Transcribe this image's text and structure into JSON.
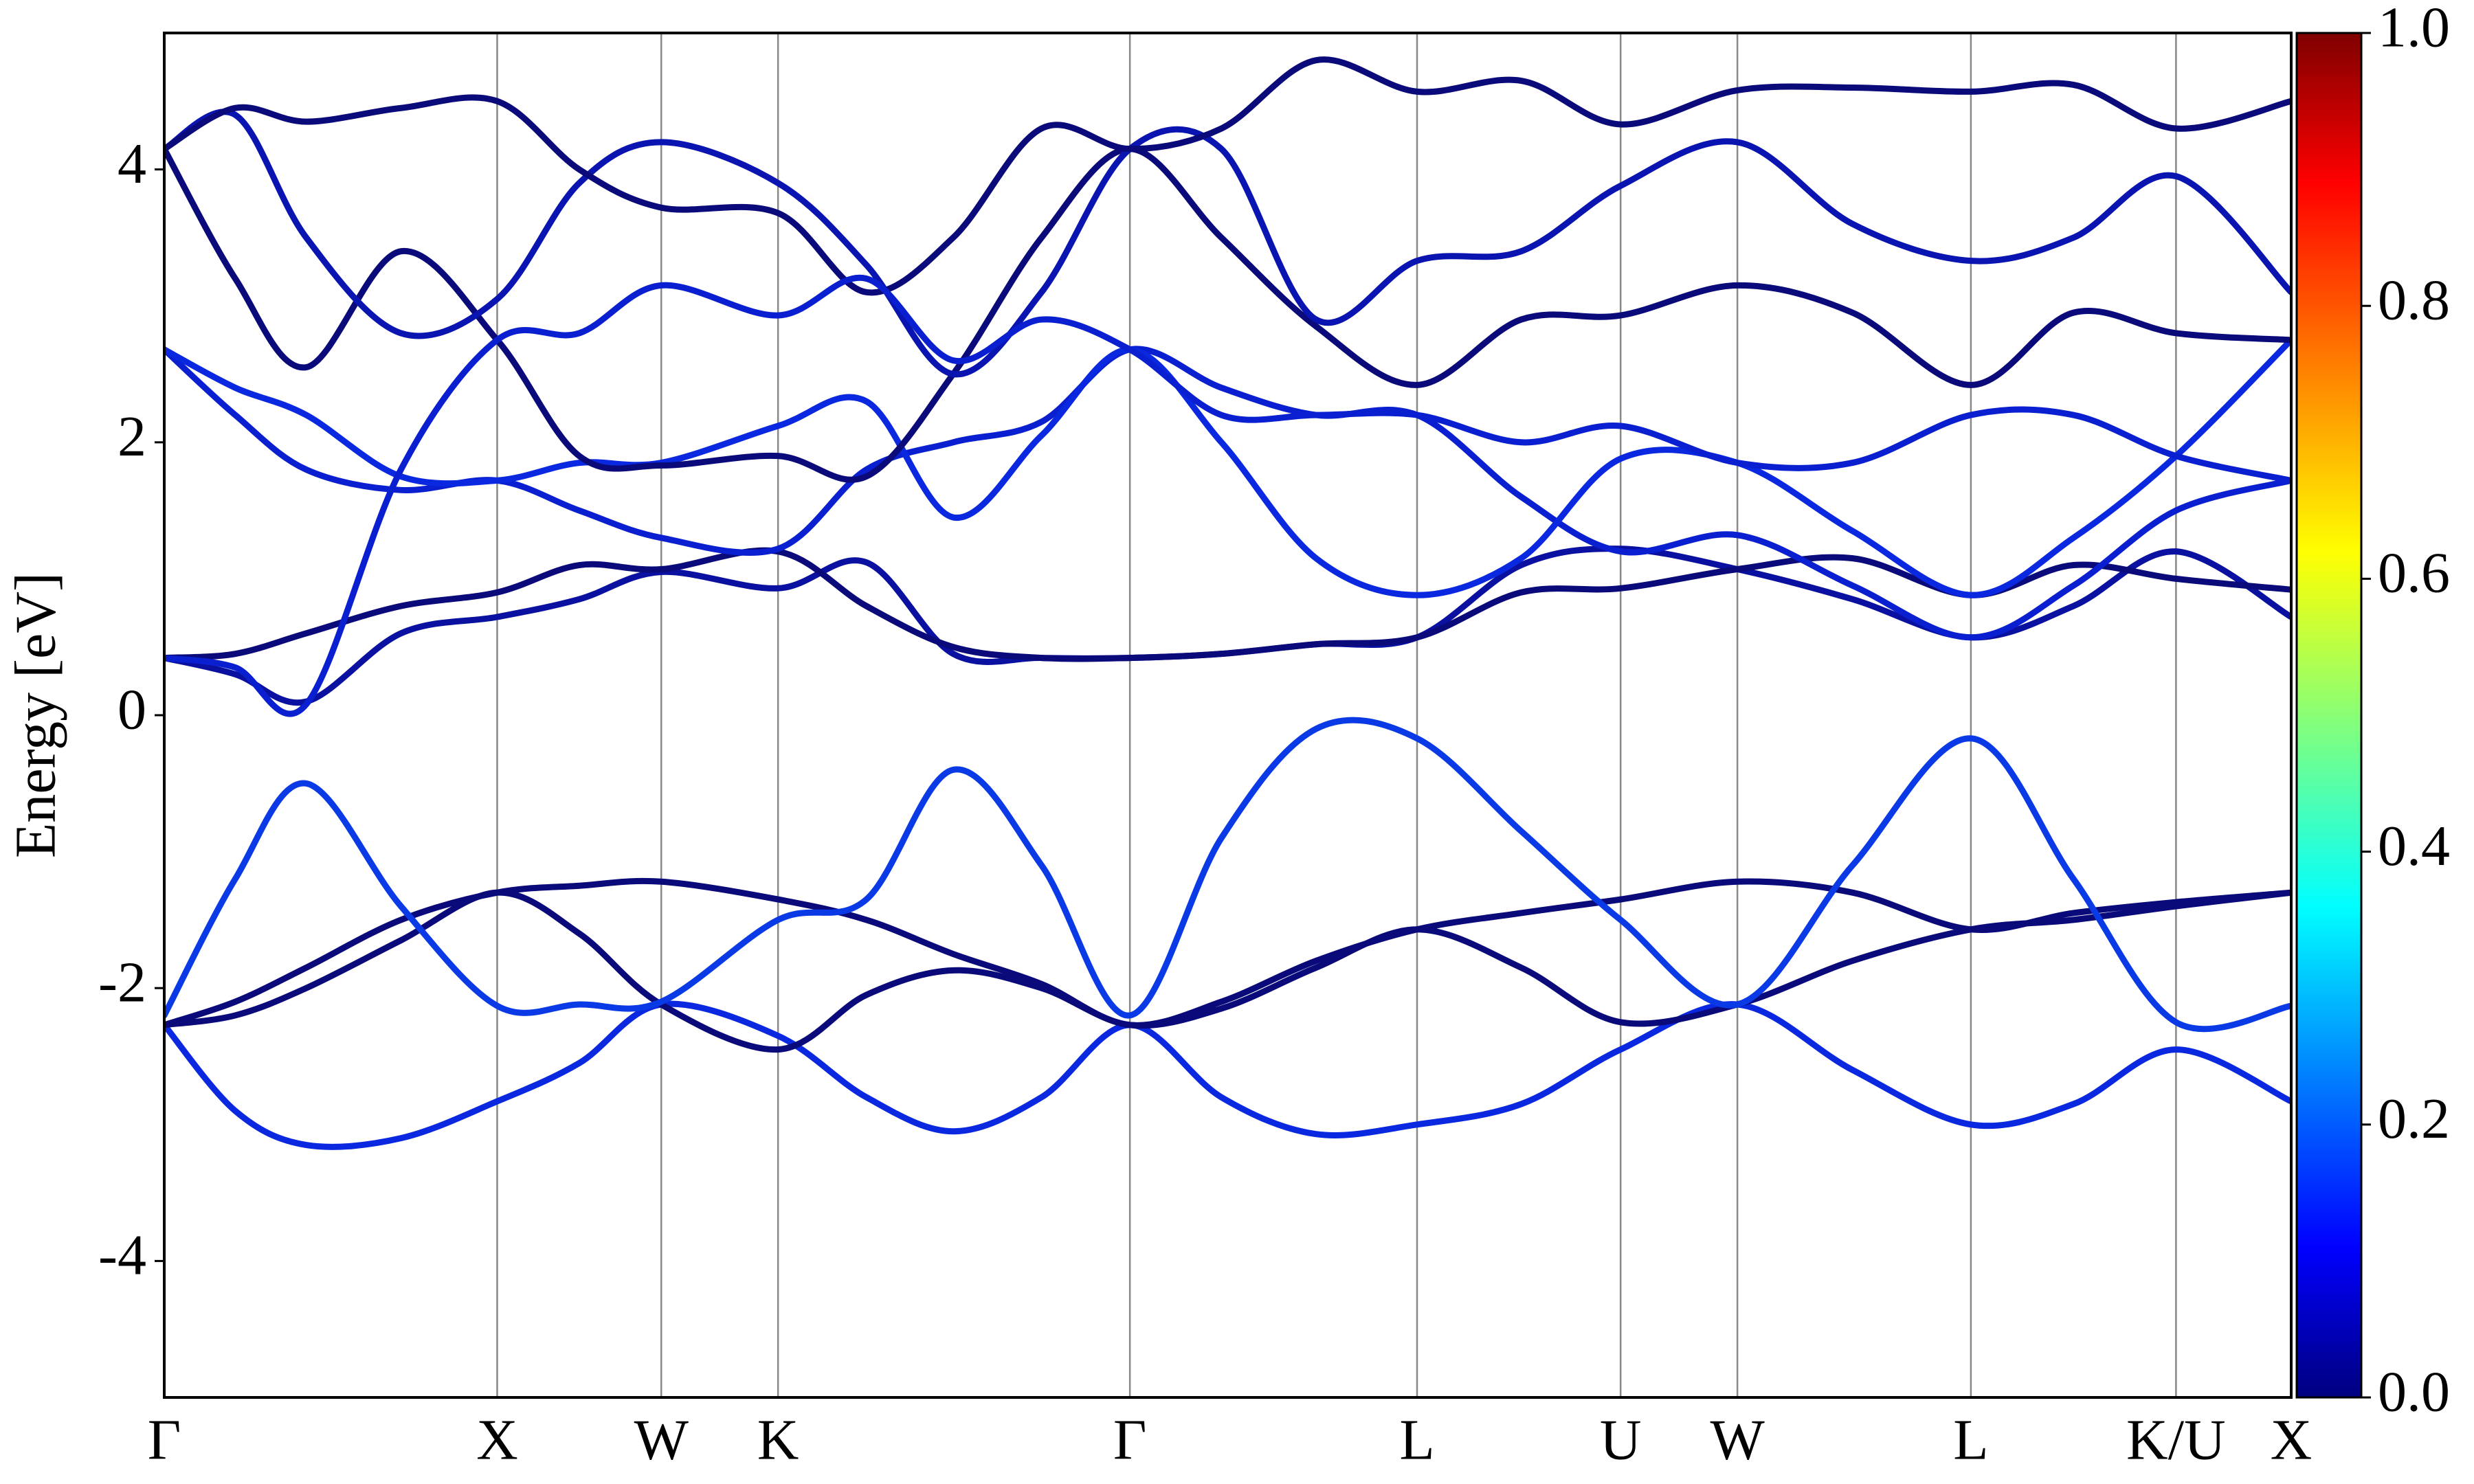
{
  "chart_data": {
    "type": "line",
    "ylabel": "Energy [eV]",
    "xlim": [
      0,
      1348
    ],
    "ylim": [
      -5,
      5
    ],
    "yticks": [
      -4,
      -2,
      0,
      2,
      4
    ],
    "xticks": [
      {
        "value": 0,
        "label": "Γ"
      },
      {
        "value": 211,
        "label": "X"
      },
      {
        "value": 315,
        "label": "W"
      },
      {
        "value": 389,
        "label": "K"
      },
      {
        "value": 612,
        "label": "Γ"
      },
      {
        "value": 794,
        "label": "L"
      },
      {
        "value": 923,
        "label": "U"
      },
      {
        "value": 997,
        "label": "W"
      },
      {
        "value": 1145,
        "label": "L"
      },
      {
        "value": 1275,
        "label": "K/U"
      },
      {
        "value": 1348,
        "label": "X"
      }
    ],
    "grid": true,
    "colorbar_lim": [
      0,
      1
    ],
    "colorbar_ticks": [
      {
        "value": 0,
        "label": "0.0"
      },
      0.2,
      0.4,
      0.6,
      0.8,
      {
        "value": 1,
        "label": "1.0"
      }
    ],
    "x": [
      0,
      45,
      90,
      150,
      211,
      263,
      315,
      389,
      445,
      500,
      556,
      612,
      670,
      730,
      794,
      860,
      923,
      997,
      1070,
      1145,
      1210,
      1275,
      1348
    ],
    "series": [
      {
        "color": "#0a28e0",
        "values": [
          -2.27,
          -2.9,
          -3.15,
          -3.1,
          -2.83,
          -2.55,
          -2.12,
          -2.35,
          -2.8,
          -3.05,
          -2.8,
          -2.27,
          -2.8,
          -3.07,
          -3.0,
          -2.85,
          -2.45,
          -2.12,
          -2.6,
          -3.0,
          -2.85,
          -2.45,
          -2.83
        ]
      },
      {
        "color": "#0a0a7a",
        "values": [
          -2.27,
          -2.2,
          -2.0,
          -1.65,
          -1.3,
          -1.6,
          -2.12,
          -2.45,
          -2.05,
          -1.87,
          -2.0,
          -2.27,
          -2.15,
          -1.85,
          -1.57,
          -1.85,
          -2.25,
          -2.12,
          -1.8,
          -1.57,
          -1.5,
          -1.4,
          -1.3
        ]
      },
      {
        "color": "#0a0a7a",
        "values": [
          -2.27,
          -2.1,
          -1.85,
          -1.5,
          -1.3,
          -1.25,
          -1.22,
          -1.35,
          -1.5,
          -1.75,
          -1.97,
          -2.27,
          -2.1,
          -1.8,
          -1.57,
          -1.45,
          -1.35,
          -1.22,
          -1.3,
          -1.57,
          -1.45,
          -1.37,
          -1.3
        ]
      },
      {
        "color": "#0a3ae6",
        "values": [
          -2.2,
          -1.2,
          -0.5,
          -1.4,
          -2.13,
          -2.12,
          -2.1,
          -1.5,
          -1.35,
          -0.4,
          -1.1,
          -2.2,
          -0.9,
          -0.1,
          -0.17,
          -0.85,
          -1.5,
          -2.12,
          -1.1,
          -0.17,
          -1.2,
          -2.25,
          -2.13
        ]
      },
      {
        "color": "#0a10a0",
        "values": [
          0.42,
          0.3,
          0.1,
          0.6,
          0.72,
          0.85,
          1.05,
          0.93,
          1.12,
          0.45,
          0.42,
          0.42,
          0.45,
          0.52,
          0.57,
          1.1,
          1.22,
          1.07,
          0.85,
          0.57,
          0.8,
          1.2,
          0.72
        ]
      },
      {
        "color": "#0a0a7a",
        "values": [
          0.42,
          0.45,
          0.6,
          0.8,
          0.9,
          1.1,
          1.07,
          1.2,
          0.8,
          0.5,
          0.42,
          0.42,
          0.45,
          0.52,
          0.57,
          0.9,
          0.93,
          1.07,
          1.15,
          0.88,
          1.1,
          1.0,
          0.92
        ]
      },
      {
        "color": "#0a20d0",
        "values": [
          2.68,
          2.2,
          1.8,
          1.65,
          1.72,
          1.5,
          1.3,
          1.22,
          1.8,
          2.0,
          2.15,
          2.68,
          2.4,
          2.2,
          2.2,
          1.6,
          1.2,
          1.32,
          0.95,
          0.57,
          0.95,
          1.5,
          1.72
        ]
      },
      {
        "color": "#0a28e0",
        "values": [
          2.68,
          2.4,
          2.2,
          1.75,
          1.72,
          1.85,
          1.85,
          2.12,
          2.3,
          1.45,
          2.05,
          2.68,
          2.0,
          1.15,
          0.88,
          1.15,
          1.88,
          1.85,
          1.35,
          0.88,
          1.3,
          1.9,
          2.75
        ]
      },
      {
        "color": "#0a0a7a",
        "values": [
          4.15,
          3.2,
          2.55,
          3.4,
          2.75,
          1.9,
          1.83,
          1.9,
          1.75,
          2.5,
          3.5,
          4.15,
          3.5,
          2.85,
          2.42,
          2.9,
          2.93,
          3.15,
          2.95,
          2.42,
          2.95,
          2.8,
          2.75
        ]
      },
      {
        "color": "#0a14b0",
        "values": [
          4.15,
          4.4,
          3.5,
          2.8,
          3.05,
          3.9,
          4.2,
          3.9,
          3.3,
          2.5,
          3.1,
          4.15,
          4.15,
          2.9,
          3.33,
          3.4,
          3.88,
          4.2,
          3.6,
          3.33,
          3.5,
          3.95,
          3.1
        ]
      },
      {
        "color": "#0a0a7a",
        "values": [
          4.15,
          4.45,
          4.35,
          4.45,
          4.5,
          4.0,
          3.72,
          3.68,
          3.1,
          3.5,
          4.3,
          4.15,
          4.3,
          4.8,
          4.57,
          4.65,
          4.33,
          4.58,
          4.6,
          4.57,
          4.62,
          4.3,
          4.5
        ]
      },
      {
        "color": "#0a20d0",
        "values": [
          0.42,
          0.35,
          0.08,
          1.8,
          2.75,
          2.8,
          3.15,
          2.93,
          3.2,
          2.6,
          2.9,
          2.68,
          2.2,
          2.2,
          2.2,
          2.0,
          2.12,
          1.85,
          1.85,
          2.2,
          2.2,
          1.9,
          1.72
        ]
      }
    ]
  }
}
